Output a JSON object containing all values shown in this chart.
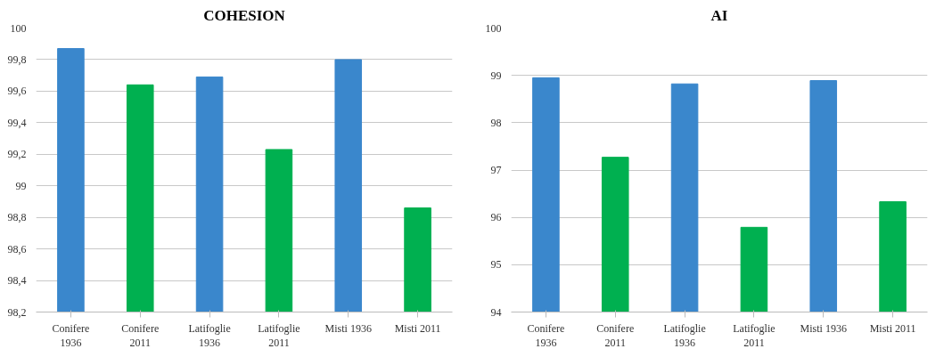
{
  "chart_data": [
    {
      "type": "bar",
      "title": "COHESION",
      "categories": [
        "Conifere 1936",
        "Conifere 2011",
        "Latifoglie 1936",
        "Latifoglie 2011",
        "Misti 1936",
        "Misti 2011"
      ],
      "values": [
        99.87,
        99.64,
        99.69,
        99.23,
        99.8,
        98.86
      ],
      "colors": [
        "#3a87cc",
        "#00b050",
        "#3a87cc",
        "#00b050",
        "#3a87cc",
        "#00b050"
      ],
      "ylim": [
        98.2,
        100
      ],
      "yticks": [
        {
          "value": 98.2,
          "label": "98,2"
        },
        {
          "value": 98.4,
          "label": "98,4"
        },
        {
          "value": 98.6,
          "label": "98,6"
        },
        {
          "value": 98.8,
          "label": "98,8"
        },
        99,
        {
          "value": 99.2,
          "label": "99,2"
        },
        {
          "value": 99.4,
          "label": "99,4"
        },
        {
          "value": 99.6,
          "label": "99,6"
        },
        {
          "value": 99.8,
          "label": "99,8"
        },
        100
      ],
      "grid": "y"
    },
    {
      "type": "bar",
      "title": "AI",
      "categories": [
        "Conifere 1936",
        "Conifere 2011",
        "Latifoglie 1936",
        "Latifoglie 2011",
        "Misti 1936",
        "Misti 2011"
      ],
      "values": [
        98.95,
        97.27,
        98.82,
        95.79,
        98.89,
        96.33
      ],
      "colors": [
        "#3a87cc",
        "#00b050",
        "#3a87cc",
        "#00b050",
        "#3a87cc",
        "#00b050"
      ],
      "ylim": [
        94,
        100
      ],
      "yticks": [
        94,
        95,
        96,
        97,
        98,
        99,
        100
      ],
      "grid": "y"
    }
  ]
}
